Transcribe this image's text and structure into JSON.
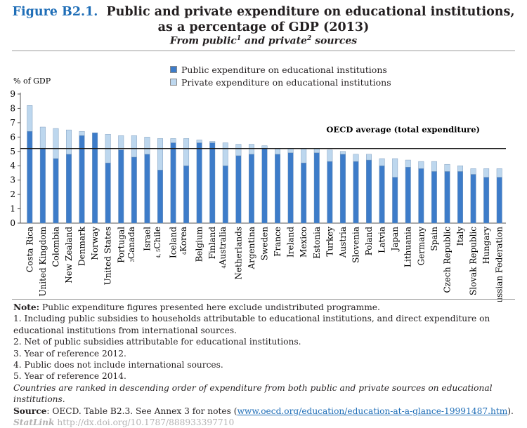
{
  "figure": {
    "number": "Figure B2.1.",
    "title_line1": "Public and private expenditure on educational institutions,",
    "title_line2": "as a percentage of GDP (2013)",
    "subtitle_pre": "From public",
    "subtitle_sup1": "1",
    "subtitle_mid": " and private",
    "subtitle_sup2": "2",
    "subtitle_post": " sources"
  },
  "colors": {
    "public": "#3d7cc9",
    "private": "#bdd7ee",
    "bar_edge": "#6f8fb3",
    "average_line": "#1a1a1a",
    "axis": "#555555"
  },
  "chart_data": {
    "type": "bar",
    "stacked": true,
    "ylabel": "% of GDP",
    "ylim": [
      0,
      9
    ],
    "yticks": [
      0,
      1,
      2,
      3,
      4,
      5,
      6,
      7,
      8,
      9
    ],
    "legend_position": "top-center",
    "categories": [
      "Costa Rica",
      "United Kingdom",
      "Colombia",
      "New Zealand",
      "Denmark",
      "Norway",
      "United States",
      "Portugal",
      "Canada",
      "Israel",
      "Chile",
      "Iceland",
      "Korea",
      "Belgium",
      "Finland",
      "Australia",
      "Netherlands",
      "Argentina",
      "Sweden",
      "France",
      "Ireland",
      "Mexico",
      "Estonia",
      "Turkey",
      "Austria",
      "Slovenia",
      "Poland",
      "Latvia",
      "Japan",
      "Lithuania",
      "Germany",
      "Spain",
      "Czech Republic",
      "Italy",
      "Slovak Republic",
      "Hungary",
      "Russian Federation"
    ],
    "category_sups": [
      "",
      "",
      "",
      "",
      "",
      "",
      "",
      "",
      "3",
      "",
      "4, 5",
      "",
      "4",
      "",
      "",
      "4",
      "",
      "",
      "",
      "",
      "",
      "",
      "",
      "",
      "",
      "",
      "",
      "",
      "",
      "",
      "",
      "",
      "",
      "",
      "",
      "",
      ""
    ],
    "series": [
      {
        "name": "Public expenditure on educational institutions",
        "values": [
          6.4,
          5.2,
          4.5,
          4.8,
          6.1,
          6.3,
          4.2,
          5.1,
          4.6,
          4.8,
          3.7,
          5.6,
          4.0,
          5.6,
          5.6,
          4.0,
          4.7,
          4.8,
          5.2,
          4.8,
          4.9,
          4.2,
          4.9,
          4.3,
          4.8,
          4.3,
          4.4,
          4.0,
          3.2,
          3.9,
          3.8,
          3.6,
          3.6,
          3.6,
          3.4,
          3.2,
          3.2
        ]
      },
      {
        "name": "Private expenditure on educational institutions",
        "values": [
          1.8,
          1.5,
          2.1,
          1.7,
          0.3,
          0.0,
          2.0,
          1.0,
          1.5,
          1.2,
          2.2,
          0.3,
          1.9,
          0.2,
          0.1,
          1.6,
          0.8,
          0.7,
          0.2,
          0.4,
          0.3,
          1.0,
          0.3,
          0.8,
          0.2,
          0.5,
          0.4,
          0.5,
          1.3,
          0.5,
          0.5,
          0.7,
          0.5,
          0.4,
          0.4,
          0.6,
          0.6
        ]
      }
    ],
    "average": {
      "label": "OECD average (total expenditure)",
      "value": 5.2
    }
  },
  "notes": {
    "note_label": "Note:",
    "note_text": " Public expenditure figures presented here exclude undistributed programme.",
    "n1": "1. Including public subsidies to households attributable to educational institutions, and direct expenditure on educational institutions from international sources.",
    "n2": "2. Net of public subsidies attributable for educational institutions.",
    "n3": "3. Year of reference 2012.",
    "n4": "4. Public does not include international sources.",
    "n5": "5. Year of reference 2014.",
    "ranking": "Countries are ranked in descending order of expenditure from both public and private sources on educational institutions.",
    "source_label": "Source",
    "source_text": ": OECD. Table B2.3. See Annex 3 for notes (",
    "source_link": "www.oecd.org/education/education-at-a-glance-19991487.htm",
    "source_end": ").",
    "statlink_label": "StatLink",
    "statlink_url": "http://dx.doi.org/10.1787/888933397710"
  }
}
